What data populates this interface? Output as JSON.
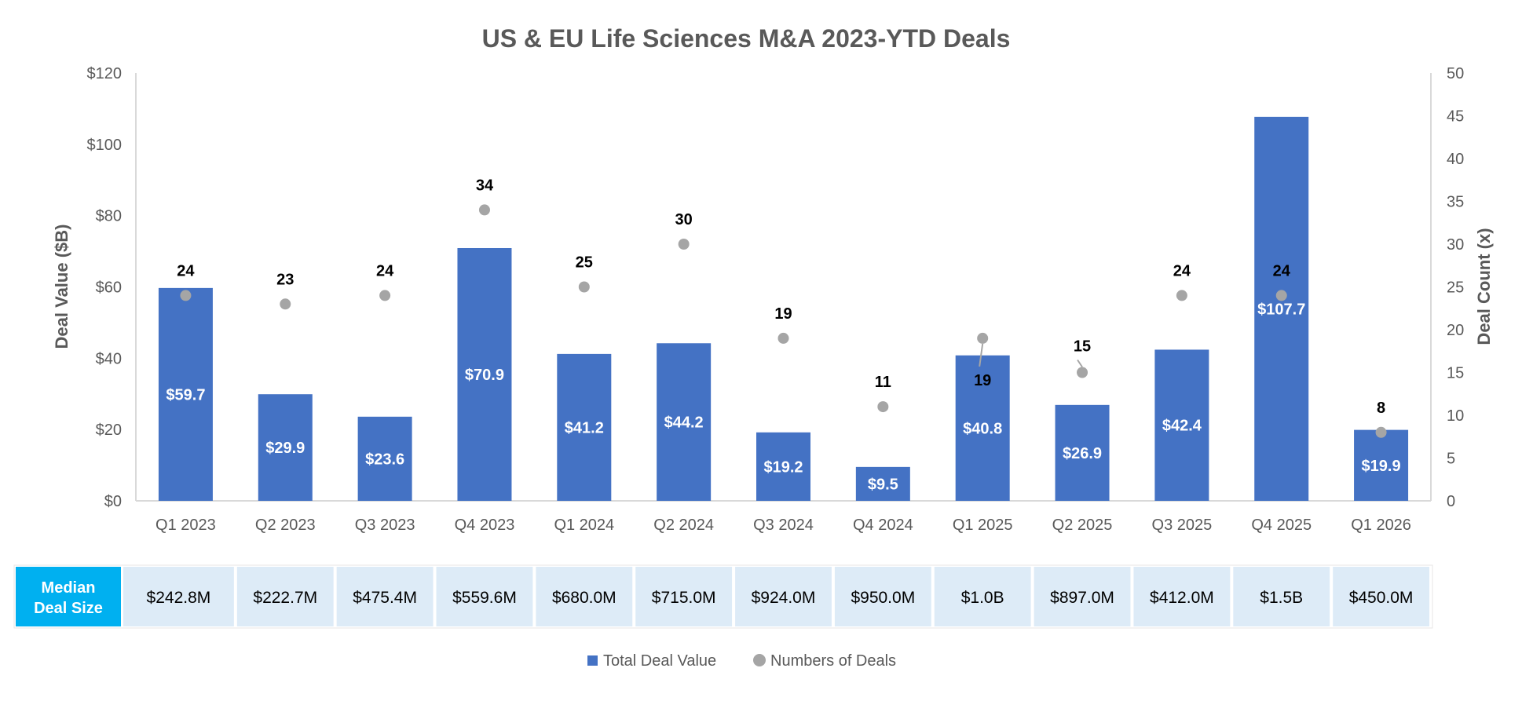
{
  "chart_data": {
    "type": "bar",
    "title": "US & EU Life Sciences M&A 2023-YTD Deals",
    "categories": [
      "Q1 2023",
      "Q2 2023",
      "Q3 2023",
      "Q4 2023",
      "Q1 2024",
      "Q2 2024",
      "Q3 2024",
      "Q4 2024",
      "Q1 2025",
      "Q2 2025",
      "Q3 2025",
      "Q4 2025",
      "Q1 2026"
    ],
    "ylabel": "Deal Value ($B)",
    "y2label": "Deal Count (x)",
    "ylim": [
      0,
      120
    ],
    "y2lim": [
      0,
      50
    ],
    "y_ticks": [
      0,
      20,
      40,
      60,
      80,
      100,
      120
    ],
    "y_tick_labels": [
      "$0",
      "$20",
      "$40",
      "$60",
      "$80",
      "$100",
      "$120"
    ],
    "y2_ticks": [
      0,
      5,
      10,
      15,
      20,
      25,
      30,
      35,
      40,
      45,
      50
    ],
    "y2_tick_labels": [
      "0",
      "5",
      "10",
      "15",
      "20",
      "25",
      "30",
      "35",
      "40",
      "45",
      "50"
    ],
    "legend_position": "bottom",
    "series": [
      {
        "name": "Total Deal Value",
        "kind": "bar",
        "axis": "left",
        "color": "#4472C4",
        "values": [
          59.7,
          29.9,
          23.6,
          70.9,
          41.2,
          44.2,
          19.2,
          9.5,
          40.8,
          26.9,
          42.4,
          107.7,
          19.9
        ],
        "labels": [
          "$59.7",
          "$29.9",
          "$23.6",
          "$70.9",
          "$41.2",
          "$44.2",
          "$19.2",
          "$9.5",
          "$40.8",
          "$26.9",
          "$42.4",
          "$107.7",
          "$19.9"
        ]
      },
      {
        "name": "Numbers of Deals",
        "kind": "scatter",
        "axis": "right",
        "color": "#A5A5A5",
        "values": [
          24,
          23,
          24,
          34,
          25,
          30,
          19,
          11,
          19,
          15,
          24,
          24,
          8
        ],
        "labels": [
          "24",
          "23",
          "24",
          "34",
          "25",
          "30",
          "19",
          "11",
          "19",
          "15",
          "24",
          "24",
          "8"
        ]
      }
    ],
    "median_table": {
      "header": "Median Deal Size",
      "values": [
        "$242.8M",
        "$222.7M",
        "$475.4M",
        "$559.6M",
        "$680.0M",
        "$715.0M",
        "$924.0M",
        "$950.0M",
        "$1.0B",
        "$897.0M",
        "$412.0M",
        "$1.5B",
        "$450.0M"
      ]
    }
  },
  "colors": {
    "bar": "#4472C4",
    "dot": "#A5A5A5",
    "table_header": "#00B0F0",
    "table_cell": "#DDEBF7",
    "axis_text": "#595959",
    "title_text": "#595959"
  }
}
